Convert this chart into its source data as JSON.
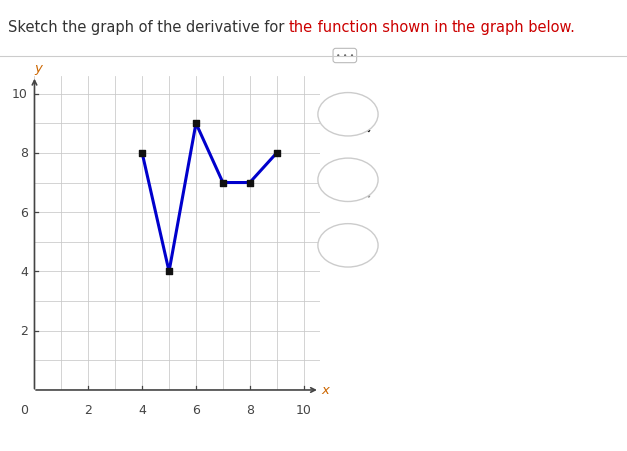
{
  "title_segments": [
    [
      "Sketch the graph of the derivative for ",
      "#333333"
    ],
    [
      "the",
      "#cc0000"
    ],
    [
      " function shown in ",
      "#cc0000"
    ],
    [
      "the",
      "#cc0000"
    ],
    [
      " graph below.",
      "#cc0000"
    ]
  ],
  "graph_x": [
    4,
    5,
    6,
    7,
    8,
    9
  ],
  "graph_y": [
    8,
    4,
    9,
    7,
    7,
    8
  ],
  "line_color": "#0000cc",
  "line_width": 2.2,
  "dot_color": "#111111",
  "dot_size": 18,
  "xlim": [
    0,
    10.6
  ],
  "ylim": [
    0,
    10.6
  ],
  "grid_color": "#c8c8c8",
  "axis_color": "#444444",
  "background_color": "#ffffff",
  "title_fontsize": 10.5,
  "tick_fontsize": 9,
  "xlabel_color": "#cc6600",
  "ylabel_color": "#cc6600"
}
